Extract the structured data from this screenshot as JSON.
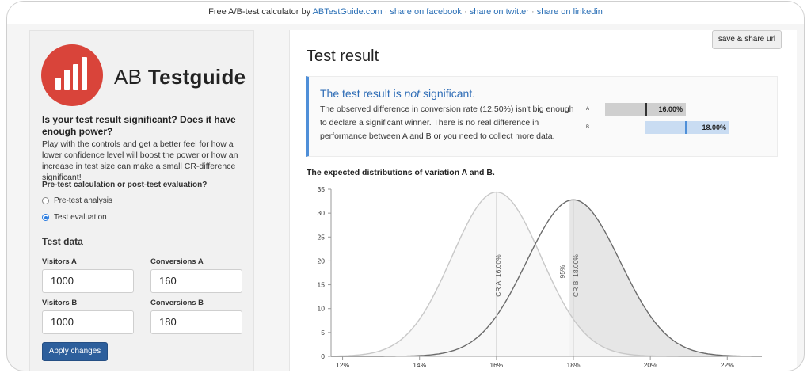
{
  "topbar": {
    "prefix": "Free A/B-test calculator by",
    "site_link": "ABTestGuide.com",
    "sep": "·",
    "facebook": "share on facebook",
    "twitter": "share on twitter",
    "linkedin": "share on linkedin"
  },
  "sidebar": {
    "logo_prefix": "AB",
    "logo_bold": "Testguide",
    "question": "Is your test result significant? Does it have enough power?",
    "description": "Play with the controls and get a better feel for how a lower confidence level will boost the power or how an increase in test size can make a small CR-difference significant!",
    "mode_label": "Pre-test calculation or post-test evaluation?",
    "modes": [
      {
        "label": "Pre-test analysis",
        "checked": false
      },
      {
        "label": "Test evaluation",
        "checked": true
      }
    ],
    "test_data_title": "Test data",
    "fields": {
      "visitors_a_label": "Visitors A",
      "visitors_a_value": "1000",
      "conversions_a_label": "Conversions A",
      "conversions_a_value": "160",
      "visitors_b_label": "Visitors B",
      "visitors_b_value": "1000",
      "conversions_b_label": "Conversions B",
      "conversions_b_value": "180"
    },
    "apply_label": "Apply changes"
  },
  "main": {
    "share_label": "save & share url",
    "title": "Test result",
    "headline_before": "The test result is ",
    "headline_em": "not",
    "headline_after": " significant.",
    "explanation": "The observed difference in conversion rate (12.50%) isn't big enough to declare a significant winner. There is no real difference in performance between A and B or you need to collect more data.",
    "variants": [
      {
        "label": "A",
        "cr_text": "16.00%",
        "cr": 16.0
      },
      {
        "label": "B",
        "cr_text": "18.00%",
        "cr": 18.0
      }
    ],
    "chart_title": "The expected distributions of variation A and B."
  },
  "colors": {
    "accent": "#4f8fd8",
    "headline": "#2f6db6",
    "logo_red": "#d9443a",
    "apply_button": "#2d5f9c",
    "bar_a": "#cfcfcf",
    "bar_b": "#c9dcf2",
    "marker_b": "#4f8fd8",
    "curve_a": "#c8c8c8",
    "curve_b": "#6b6b6b"
  },
  "chart_data": {
    "type": "line",
    "title": "The expected distributions of variation A and B.",
    "xlabel": "",
    "ylabel": "",
    "x_ticks": [
      "12%",
      "14%",
      "16%",
      "18%",
      "20%",
      "22%"
    ],
    "y_ticks": [
      0,
      5,
      10,
      15,
      20,
      25,
      30,
      35
    ],
    "xlim": [
      11.7,
      22.9
    ],
    "ylim": [
      0,
      35
    ],
    "series": [
      {
        "mean": 16.0,
        "sd": 1.16,
        "peak": 34.4
      },
      {
        "mean": 18.0,
        "sd": 1.215,
        "peak": 32.8
      }
    ],
    "annotations": [
      {
        "text": "CR A: 16.00%",
        "x": 16.0
      },
      {
        "text": "CR B: 18.00%",
        "x": 18.0
      },
      {
        "text": "95%",
        "x": 17.9
      }
    ],
    "shaded_region_from": 17.9,
    "grid": false
  }
}
